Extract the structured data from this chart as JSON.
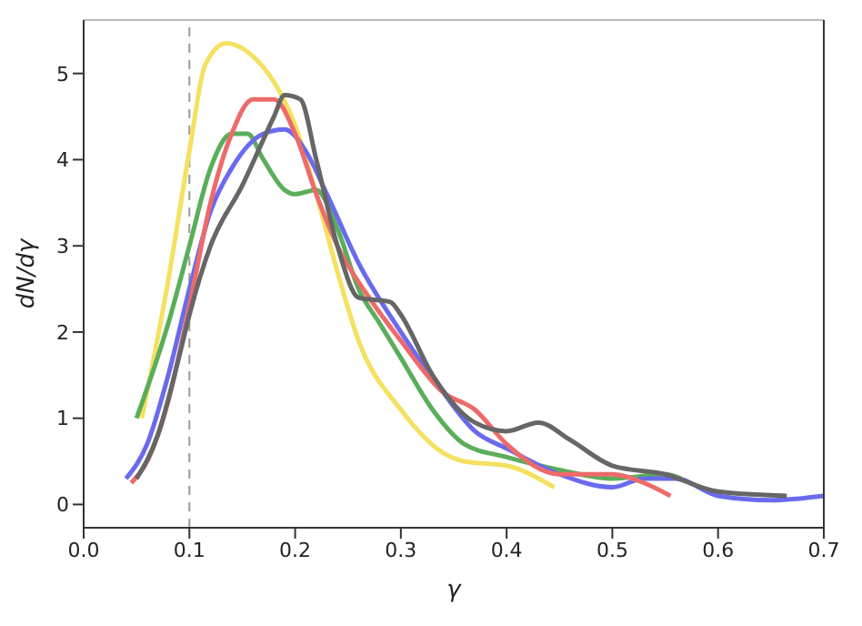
{
  "chart_data": {
    "type": "line",
    "xlabel": "γ",
    "ylabel": "dN/dγ",
    "xlim": [
      0,
      0.7
    ],
    "ylim": [
      -0.27,
      5.62
    ],
    "xticks": [
      {
        "value": 0,
        "label": "0.0"
      },
      {
        "value": 0.1,
        "label": "0.1"
      },
      {
        "value": 0.2,
        "label": "0.2"
      },
      {
        "value": 0.3,
        "label": "0.3"
      },
      {
        "value": 0.4,
        "label": "0.4"
      },
      {
        "value": 0.5,
        "label": "0.5"
      },
      {
        "value": 0.6,
        "label": "0.6"
      },
      {
        "value": 0.7,
        "label": "0.7"
      }
    ],
    "yticks": [
      0,
      1,
      2,
      3,
      4,
      5
    ],
    "legend": false,
    "marker": "none",
    "line_style": "solid",
    "ref_lines": [
      {
        "axis": "x",
        "value": 0.1,
        "color": "#999999",
        "line_style": "dashed"
      }
    ],
    "series": [
      {
        "color": "#f5e060",
        "x": [
          0.055,
          0.08,
          0.1,
          0.115,
          0.135,
          0.16,
          0.18,
          0.2,
          0.22,
          0.24,
          0.26,
          0.3,
          0.34,
          0.36,
          0.4,
          0.445
        ],
        "values": [
          1.0,
          2.6,
          4.1,
          5.1,
          5.35,
          5.2,
          4.9,
          4.4,
          3.6,
          2.7,
          1.9,
          1.1,
          0.6,
          0.5,
          0.45,
          0.2
        ]
      },
      {
        "color": "#5aae5a",
        "x": [
          0.05,
          0.08,
          0.1,
          0.12,
          0.14,
          0.155,
          0.17,
          0.19,
          0.2,
          0.22,
          0.24,
          0.26,
          0.28,
          0.3,
          0.33,
          0.36,
          0.4,
          0.45,
          0.5,
          0.55,
          0.565
        ],
        "values": [
          1.0,
          2.1,
          3.0,
          3.9,
          4.3,
          4.3,
          4.0,
          3.65,
          3.6,
          3.65,
          3.2,
          2.5,
          2.1,
          1.7,
          1.1,
          0.7,
          0.55,
          0.4,
          0.3,
          0.35,
          0.3
        ]
      },
      {
        "color": "#6a6aee",
        "x": [
          0.04,
          0.06,
          0.08,
          0.1,
          0.12,
          0.14,
          0.17,
          0.19,
          0.21,
          0.23,
          0.26,
          0.3,
          0.34,
          0.37,
          0.4,
          0.45,
          0.5,
          0.53,
          0.56,
          0.6,
          0.65,
          0.7
        ],
        "values": [
          0.3,
          0.7,
          1.5,
          2.5,
          3.4,
          3.9,
          4.3,
          4.35,
          4.1,
          3.6,
          2.8,
          2.0,
          1.3,
          0.85,
          0.65,
          0.35,
          0.2,
          0.3,
          0.3,
          0.1,
          0.05,
          0.1
        ]
      },
      {
        "color": "#ee6a6a",
        "x": [
          0.045,
          0.06,
          0.08,
          0.1,
          0.12,
          0.14,
          0.16,
          0.18,
          0.2,
          0.22,
          0.24,
          0.27,
          0.3,
          0.34,
          0.37,
          0.4,
          0.45,
          0.5,
          0.53,
          0.555
        ],
        "values": [
          0.25,
          0.5,
          1.2,
          2.3,
          3.5,
          4.3,
          4.7,
          4.7,
          4.3,
          3.6,
          3.0,
          2.4,
          1.9,
          1.3,
          1.1,
          0.7,
          0.35,
          0.35,
          0.25,
          0.1
        ]
      },
      {
        "color": "#666666",
        "x": [
          0.05,
          0.07,
          0.09,
          0.1,
          0.12,
          0.15,
          0.18,
          0.19,
          0.205,
          0.22,
          0.24,
          0.26,
          0.29,
          0.3,
          0.33,
          0.37,
          0.4,
          0.43,
          0.46,
          0.5,
          0.55,
          0.6,
          0.665
        ],
        "values": [
          0.3,
          0.8,
          1.7,
          2.2,
          3.0,
          3.7,
          4.5,
          4.75,
          4.7,
          4.0,
          3.0,
          2.4,
          2.35,
          2.2,
          1.5,
          0.95,
          0.85,
          0.95,
          0.75,
          0.45,
          0.35,
          0.15,
          0.1
        ]
      }
    ]
  }
}
